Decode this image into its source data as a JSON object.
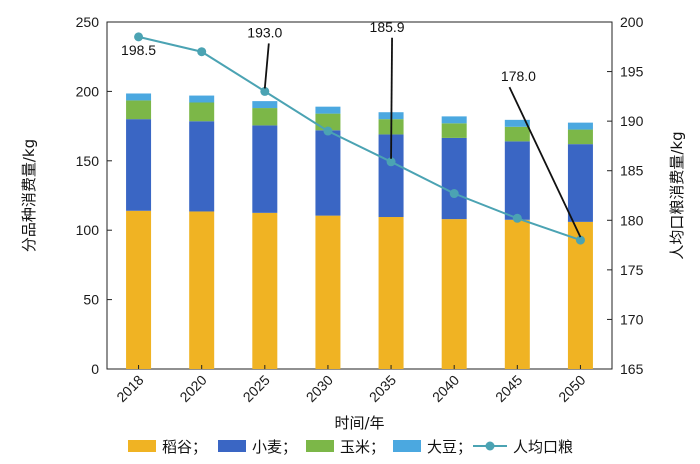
{
  "chart_data": {
    "type": "bar",
    "stacked": true,
    "categories": [
      "2018",
      "2020",
      "2025",
      "2030",
      "2035",
      "2040",
      "2045",
      "2050"
    ],
    "xlabel": "时间/年",
    "ylabel": "分品种消费量/kg",
    "y2label": "人均口粮消费量/kg",
    "ylim": [
      0,
      250
    ],
    "yticks": [
      0,
      50,
      100,
      150,
      200,
      250
    ],
    "y2lim": [
      165,
      200
    ],
    "y2ticks": [
      165,
      170,
      175,
      180,
      185,
      190,
      195,
      200
    ],
    "series": [
      {
        "name": "稻谷",
        "legend_label": "稻谷；",
        "color": "#F0B323",
        "values": [
          114,
          113.5,
          112.5,
          110.5,
          109.5,
          108,
          107.5,
          106
        ]
      },
      {
        "name": "小麦",
        "legend_label": "小麦；",
        "color": "#3A66C4",
        "values": [
          66,
          65,
          63,
          61.5,
          59.5,
          58.5,
          56.5,
          56
        ]
      },
      {
        "name": "玉米",
        "legend_label": "玉米；",
        "color": "#7CB748",
        "values": [
          13.5,
          13.5,
          12.5,
          12,
          11,
          10.5,
          10.5,
          10.5
        ]
      },
      {
        "name": "大豆",
        "legend_label": "大豆；",
        "color": "#4BA8E0",
        "values": [
          5,
          5,
          5,
          5,
          5,
          5,
          5,
          5
        ]
      }
    ],
    "line": {
      "name": "人均口粮",
      "legend_label": "人均口粮",
      "axis": "right",
      "color": "#4BA3B3",
      "values": [
        198.5,
        197,
        193,
        189,
        185.9,
        182.7,
        180.2,
        178
      ]
    },
    "annotations": [
      {
        "text": "198.5",
        "index": 0
      },
      {
        "text": "193.0",
        "index": 2
      },
      {
        "text": "185.9",
        "index": 4
      },
      {
        "text": "178.0",
        "index": 7
      }
    ]
  }
}
